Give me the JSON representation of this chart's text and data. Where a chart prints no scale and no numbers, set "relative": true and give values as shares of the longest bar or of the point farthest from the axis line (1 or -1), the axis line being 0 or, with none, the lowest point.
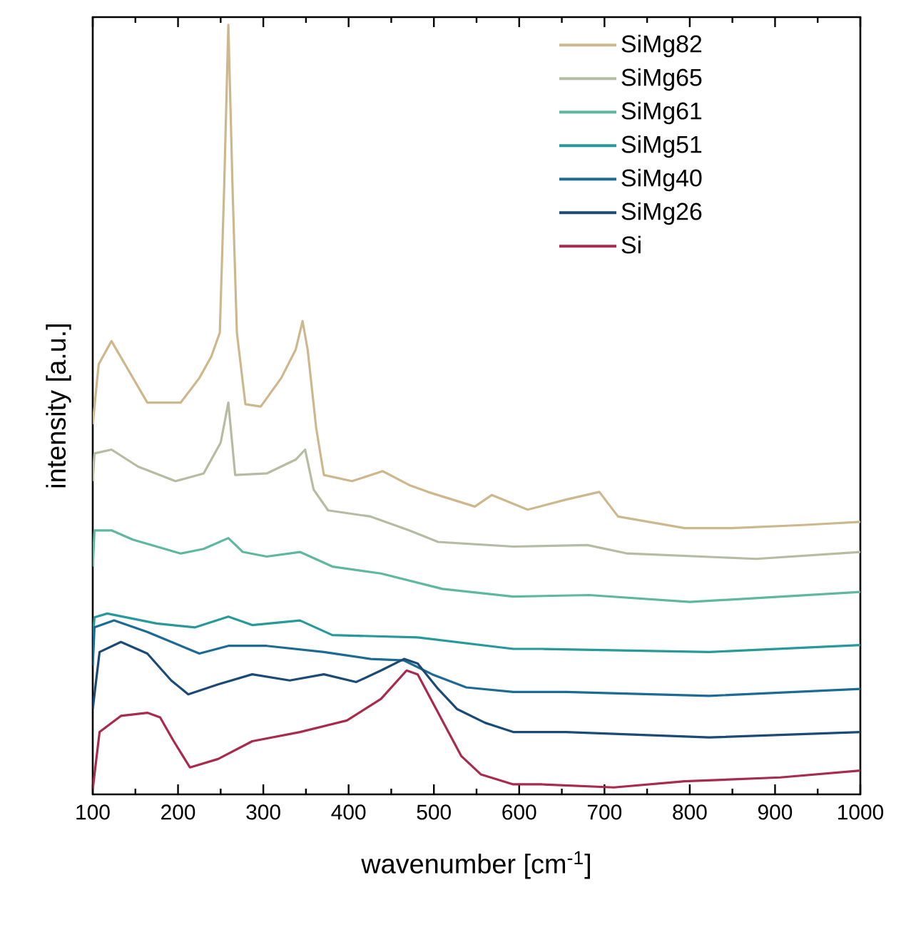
{
  "chart_data": {
    "type": "line",
    "relative": true,
    "xlabel": "wavenumber [cm$^{-1}$]",
    "ylabel": "intensity [a.u.]",
    "xlim": [
      100,
      1000
    ],
    "xticks": [
      100,
      {
        "value": 150,
        "label": null
      },
      200,
      {
        "value": 250,
        "label": null
      },
      300,
      {
        "value": 350,
        "label": null
      },
      400,
      {
        "value": 450,
        "label": null
      },
      500,
      {
        "value": 550,
        "label": null
      },
      600,
      {
        "value": 650,
        "label": null
      },
      700,
      {
        "value": 750,
        "label": null
      },
      800,
      {
        "value": 850,
        "label": null
      },
      900,
      {
        "value": 950,
        "label": null
      },
      1000
    ],
    "legend": "top right",
    "grid": false,
    "line_style": "solid",
    "marker": "none",
    "series": [
      {
        "name": "SiMg82",
        "color": "#cdb88e",
        "x": [
          100,
          107,
          122,
          164,
          203,
          225,
          239,
          249,
          254,
          259,
          264,
          269,
          279,
          297,
          321,
          338,
          346,
          352,
          362,
          371,
          404,
          440,
          471,
          493,
          548,
          568,
          610,
          655,
          694,
          716,
          794,
          849,
          933,
          1000
        ],
        "values": [
          0.481,
          0.559,
          0.589,
          0.509,
          0.509,
          0.541,
          0.569,
          0.6,
          0.785,
          1.0,
          0.785,
          0.6,
          0.507,
          0.504,
          0.541,
          0.578,
          0.615,
          0.578,
          0.476,
          0.415,
          0.407,
          0.42,
          0.402,
          0.393,
          0.374,
          0.389,
          0.37,
          0.383,
          0.393,
          0.361,
          0.346,
          0.346,
          0.35,
          0.354
        ]
      },
      {
        "name": "SiMg65",
        "color": "#b5bca2",
        "x": [
          100,
          102,
          122,
          153,
          197,
          230,
          250,
          259,
          267,
          304,
          338,
          349,
          359,
          376,
          426,
          471,
          505,
          593,
          680,
          727,
          878,
          1000
        ],
        "values": [
          0.407,
          0.443,
          0.448,
          0.426,
          0.407,
          0.417,
          0.457,
          0.509,
          0.415,
          0.417,
          0.435,
          0.448,
          0.396,
          0.369,
          0.361,
          0.343,
          0.328,
          0.322,
          0.324,
          0.313,
          0.306,
          0.315
        ]
      },
      {
        "name": "SiMg61",
        "color": "#5db89f",
        "x": [
          100,
          102,
          122,
          147,
          203,
          230,
          259,
          276,
          304,
          343,
          381,
          438,
          510,
          593,
          682,
          800,
          1000
        ],
        "values": [
          0.296,
          0.343,
          0.343,
          0.331,
          0.313,
          0.319,
          0.333,
          0.315,
          0.309,
          0.315,
          0.296,
          0.287,
          0.267,
          0.257,
          0.259,
          0.25,
          0.263
        ]
      },
      {
        "name": "SiMg51",
        "color": "#27999a",
        "x": [
          100,
          102,
          117,
          175,
          220,
          259,
          287,
          343,
          381,
          481,
          593,
          627,
          823,
          1000
        ],
        "values": [
          0.204,
          0.23,
          0.235,
          0.222,
          0.217,
          0.231,
          0.22,
          0.226,
          0.207,
          0.204,
          0.189,
          0.189,
          0.185,
          0.194
        ]
      },
      {
        "name": "SiMg40",
        "color": "#1c6b94",
        "x": [
          100,
          102,
          125,
          164,
          225,
          259,
          304,
          371,
          426,
          465,
          498,
          538,
          593,
          655,
          823,
          1000
        ],
        "values": [
          0.167,
          0.217,
          0.226,
          0.211,
          0.183,
          0.193,
          0.193,
          0.185,
          0.176,
          0.174,
          0.156,
          0.139,
          0.133,
          0.133,
          0.128,
          0.137
        ]
      },
      {
        "name": "SiMg26",
        "color": "#1b4a76",
        "x": [
          100,
          108,
          133,
          164,
          192,
          212,
          247,
          287,
          331,
          371,
          409,
          438,
          465,
          481,
          505,
          527,
          560,
          593,
          655,
          823,
          1000
        ],
        "values": [
          0.111,
          0.185,
          0.198,
          0.183,
          0.148,
          0.13,
          0.143,
          0.156,
          0.148,
          0.156,
          0.146,
          0.161,
          0.176,
          0.17,
          0.137,
          0.111,
          0.093,
          0.081,
          0.081,
          0.074,
          0.081
        ]
      },
      {
        "name": "Si",
        "color": "#a82a4c",
        "x": [
          100,
          108,
          133,
          164,
          179,
          195,
          214,
          247,
          287,
          343,
          398,
          438,
          468,
          481,
          505,
          532,
          555,
          593,
          627,
          711,
          794,
          906,
          1000
        ],
        "values": [
          0.007,
          0.081,
          0.102,
          0.106,
          0.1,
          0.069,
          0.035,
          0.046,
          0.069,
          0.081,
          0.096,
          0.124,
          0.161,
          0.156,
          0.106,
          0.05,
          0.026,
          0.013,
          0.013,
          0.009,
          0.017,
          0.022,
          0.031
        ]
      }
    ]
  }
}
